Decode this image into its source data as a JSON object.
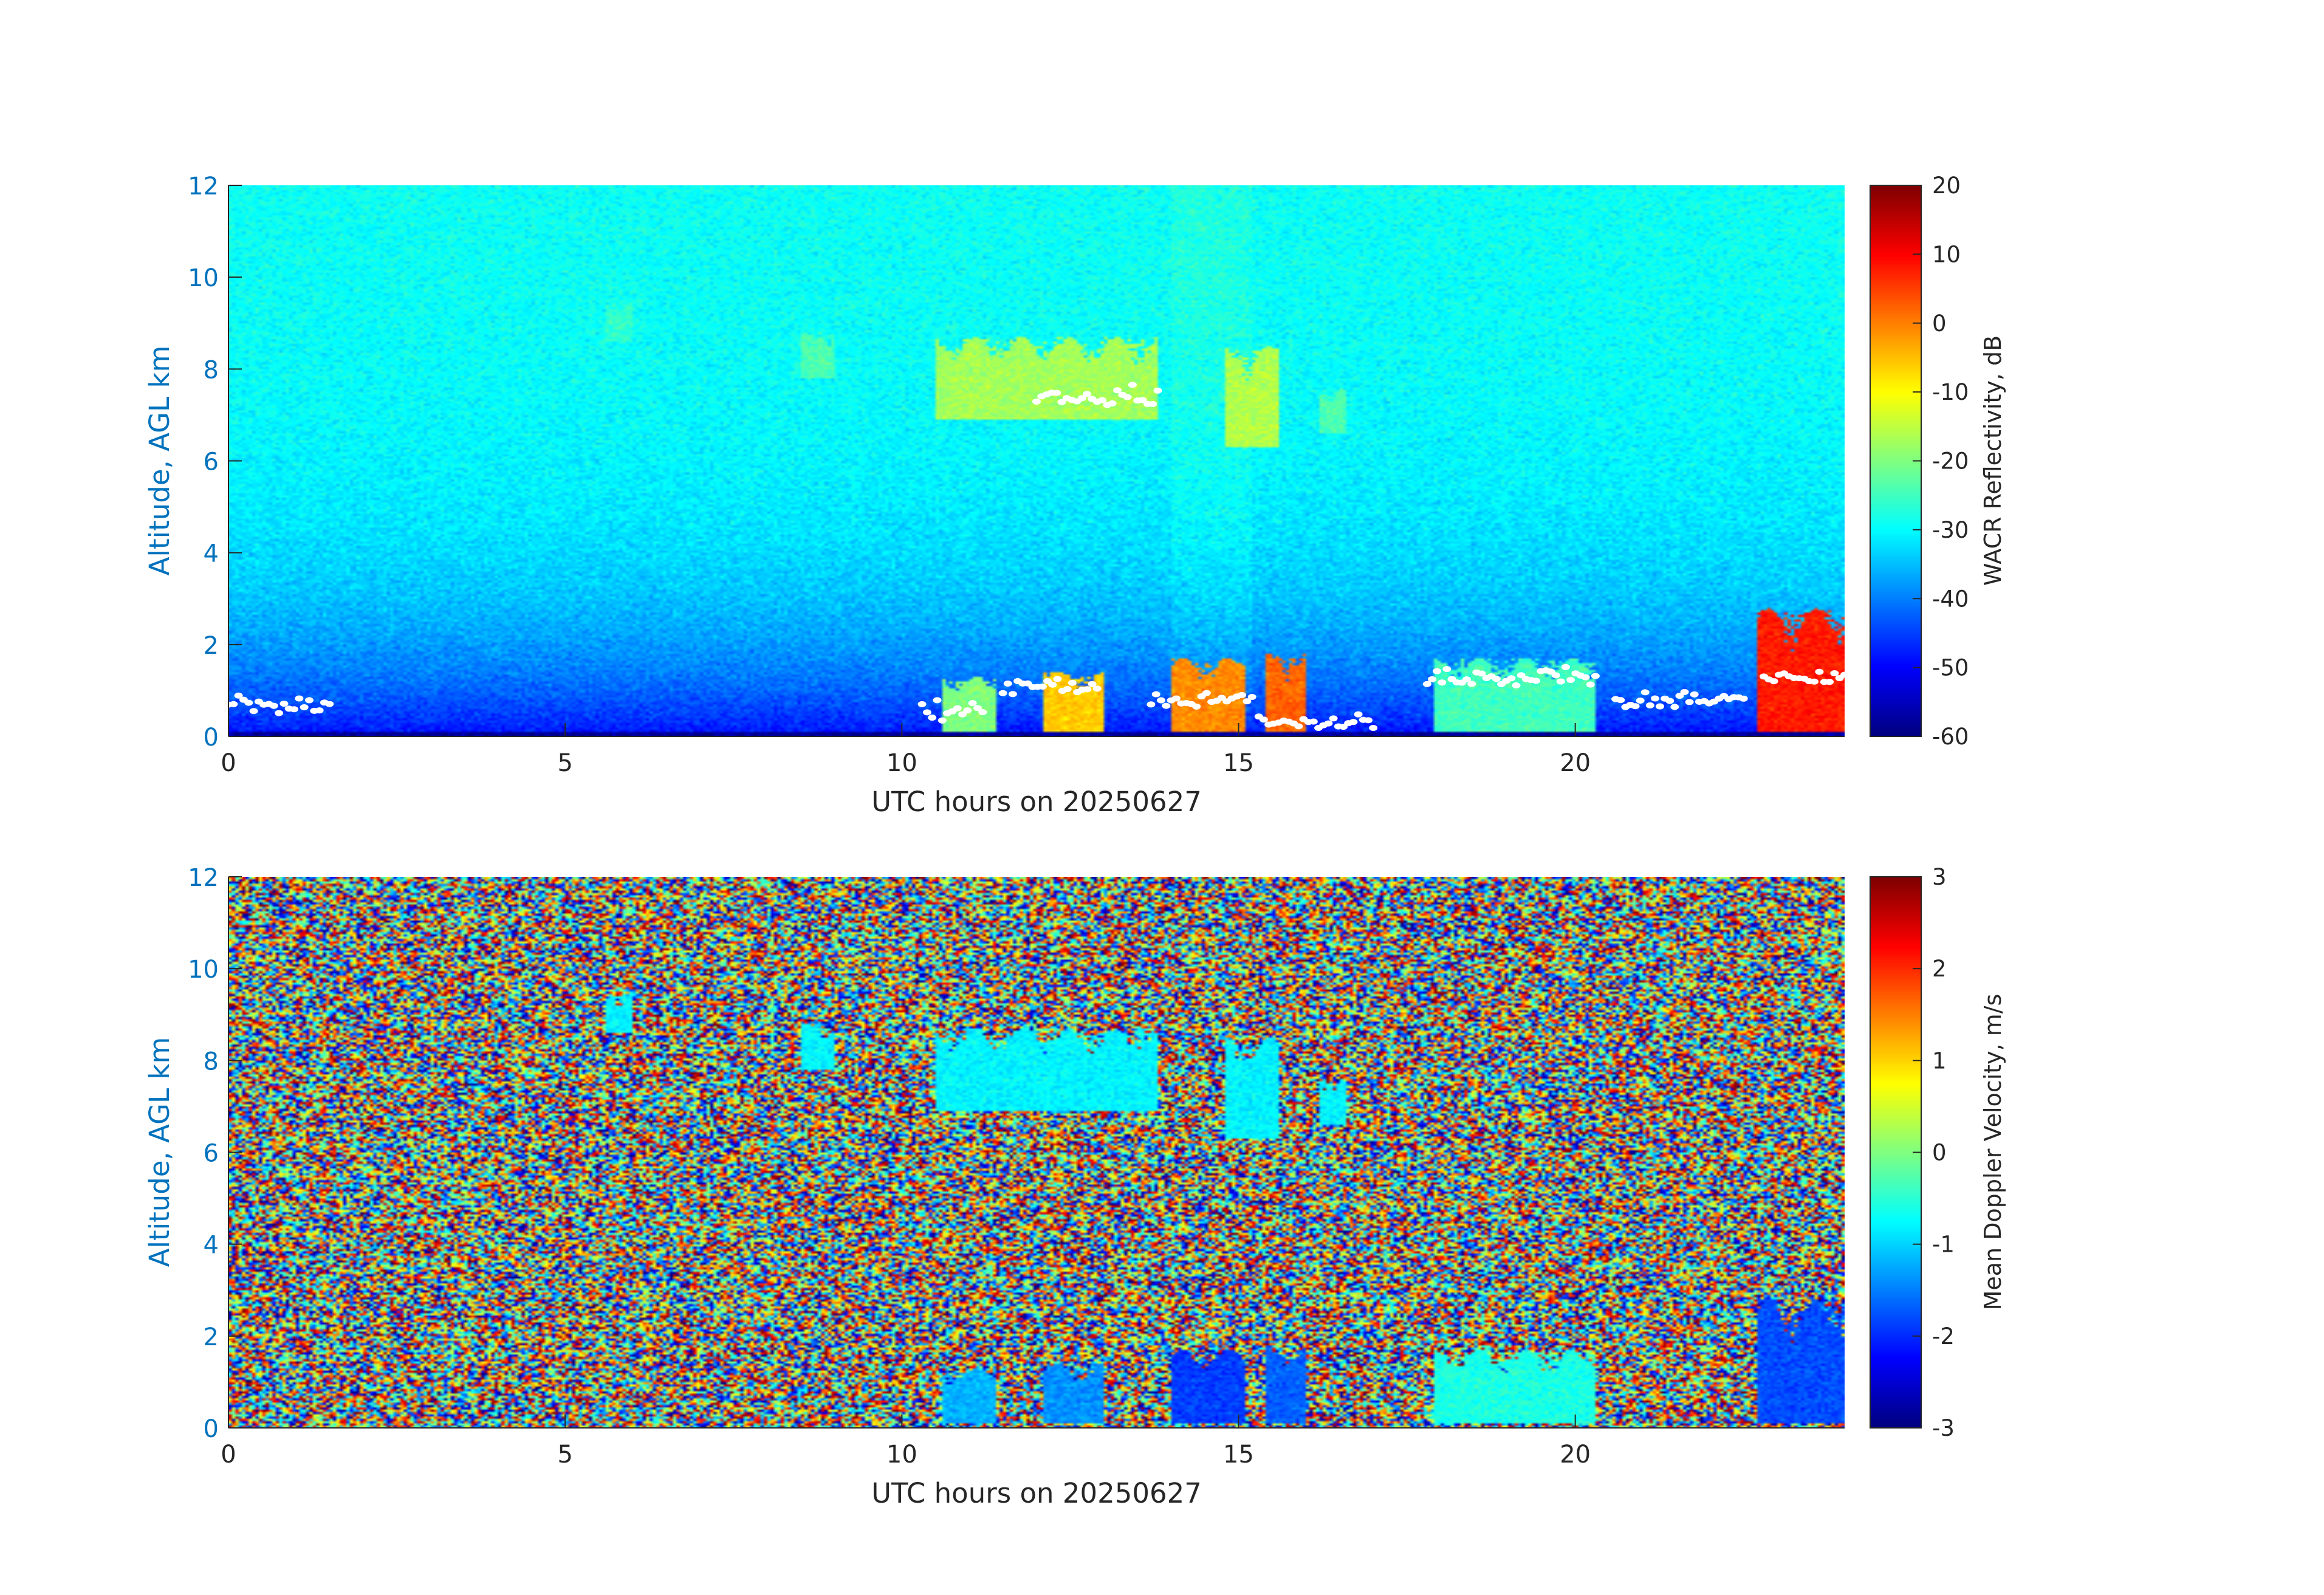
{
  "figure": {
    "panels": [
      {
        "ylabel": "Altitude, AGL km",
        "xlabel": "UTC hours on 20250627",
        "colorbar_label": "WACR Reflectivity, dB"
      },
      {
        "ylabel": "Altitude, AGL km",
        "xlabel": "UTC hours on 20250627",
        "colorbar_label": "Mean Doppler Velocity, m/s"
      }
    ]
  },
  "colors": {
    "axis_label": "#0072BD",
    "tick_text": "#262626",
    "ceilometer_points": "#ffffff",
    "colormap": "jet"
  },
  "chart_data": [
    {
      "type": "heatmap",
      "variable": "reflectivity",
      "x_range": [
        0,
        24
      ],
      "y_range": [
        0,
        12
      ],
      "x_ticks": [
        0,
        5,
        10,
        15,
        20
      ],
      "y_ticks": [
        0,
        2,
        4,
        6,
        8,
        10,
        12
      ],
      "clim": [
        -60,
        20
      ],
      "cbar_ticks": [
        -60,
        -50,
        -40,
        -30,
        -20,
        -10,
        0,
        10,
        20
      ],
      "xlabel": "UTC hours on 20250627",
      "ylabel": "Altitude, AGL km",
      "colorbar_label": "WACR Reflectivity, dB",
      "grid": false,
      "features": [
        {
          "feature": "cirrus",
          "x": [
            5.6,
            6.0
          ],
          "y": [
            8.6,
            9.5
          ],
          "value": -26
        },
        {
          "feature": "cirrus",
          "x": [
            8.5,
            9.0
          ],
          "y": [
            7.8,
            8.8
          ],
          "value": -24
        },
        {
          "feature": "cirrus",
          "x": [
            10.5,
            13.8
          ],
          "y": [
            6.9,
            8.7
          ],
          "value": -17
        },
        {
          "feature": "cirrus",
          "x": [
            14.8,
            15.6
          ],
          "y": [
            6.3,
            8.5
          ],
          "value": -16
        },
        {
          "feature": "cirrus",
          "x": [
            16.2,
            16.6
          ],
          "y": [
            6.6,
            7.6
          ],
          "value": -24
        },
        {
          "feature": "low cloud",
          "x": [
            10.6,
            11.4
          ],
          "y": [
            0.1,
            1.3
          ],
          "value": -20
        },
        {
          "feature": "low cloud",
          "x": [
            12.1,
            13.0
          ],
          "y": [
            0.1,
            1.4
          ],
          "value": -6
        },
        {
          "feature": "low cloud",
          "x": [
            14.0,
            15.1
          ],
          "y": [
            0.1,
            1.7
          ],
          "value": -1
        },
        {
          "feature": "low cloud",
          "x": [
            15.4,
            16.0
          ],
          "y": [
            0.1,
            1.8
          ],
          "value": 2
        },
        {
          "feature": "low cloud",
          "x": [
            17.9,
            20.3
          ],
          "y": [
            0.1,
            1.7
          ],
          "value": -25
        },
        {
          "feature": "precipitation",
          "x": [
            22.7,
            24.0
          ],
          "y": [
            0.1,
            2.8
          ],
          "value": 8
        }
      ],
      "ceilometer_bases": [
        {
          "x": [
            0.0,
            1.5
          ],
          "y": 0.7
        },
        {
          "x": [
            10.3,
            11.2
          ],
          "y": 0.6
        },
        {
          "x": [
            11.5,
            12.9
          ],
          "y": 1.1
        },
        {
          "x": [
            12.0,
            13.8
          ],
          "y": 7.4
        },
        {
          "x": [
            13.7,
            15.2
          ],
          "y": 0.8
        },
        {
          "x": [
            15.3,
            17.0
          ],
          "y": 0.3
        },
        {
          "x": [
            17.8,
            20.3
          ],
          "y": 1.3
        },
        {
          "x": [
            20.6,
            22.5
          ],
          "y": 0.8
        },
        {
          "x": [
            22.8,
            24.0
          ],
          "y": 1.3
        }
      ]
    },
    {
      "type": "heatmap",
      "variable": "doppler_velocity",
      "x_range": [
        0,
        24
      ],
      "y_range": [
        0,
        12
      ],
      "x_ticks": [
        0,
        5,
        10,
        15,
        20
      ],
      "y_ticks": [
        0,
        2,
        4,
        6,
        8,
        10,
        12
      ],
      "clim": [
        -3,
        3
      ],
      "cbar_ticks": [
        -3,
        -2,
        -1,
        0,
        1,
        2,
        3
      ],
      "xlabel": "UTC hours on 20250627",
      "ylabel": "Altitude, AGL km",
      "colorbar_label": "Mean Doppler Velocity, m/s",
      "grid": false,
      "background": "noise",
      "features": [
        {
          "feature": "cirrus",
          "x": [
            5.6,
            6.0
          ],
          "y": [
            8.6,
            9.5
          ],
          "value": -0.8
        },
        {
          "feature": "cirrus",
          "x": [
            8.5,
            9.0
          ],
          "y": [
            7.8,
            8.8
          ],
          "value": -0.8
        },
        {
          "feature": "cirrus",
          "x": [
            10.5,
            13.8
          ],
          "y": [
            6.9,
            8.7
          ],
          "value": -0.8
        },
        {
          "feature": "cirrus",
          "x": [
            14.8,
            15.6
          ],
          "y": [
            6.3,
            8.5
          ],
          "value": -0.8
        },
        {
          "feature": "cirrus",
          "x": [
            16.2,
            16.6
          ],
          "y": [
            6.6,
            7.6
          ],
          "value": -0.8
        },
        {
          "feature": "low cloud",
          "x": [
            10.6,
            11.4
          ],
          "y": [
            0.1,
            1.3
          ],
          "value": -1.2
        },
        {
          "feature": "low cloud",
          "x": [
            12.1,
            13.0
          ],
          "y": [
            0.1,
            1.4
          ],
          "value": -1.4
        },
        {
          "feature": "low cloud",
          "x": [
            14.0,
            15.1
          ],
          "y": [
            0.1,
            1.7
          ],
          "value": -1.9
        },
        {
          "feature": "low cloud",
          "x": [
            15.4,
            16.0
          ],
          "y": [
            0.1,
            1.8
          ],
          "value": -1.7
        },
        {
          "feature": "low cloud",
          "x": [
            17.9,
            20.3
          ],
          "y": [
            0.1,
            1.7
          ],
          "value": -0.6
        },
        {
          "feature": "precipitation",
          "x": [
            22.7,
            24.0
          ],
          "y": [
            0.1,
            2.8
          ],
          "value": -1.8
        }
      ]
    }
  ]
}
